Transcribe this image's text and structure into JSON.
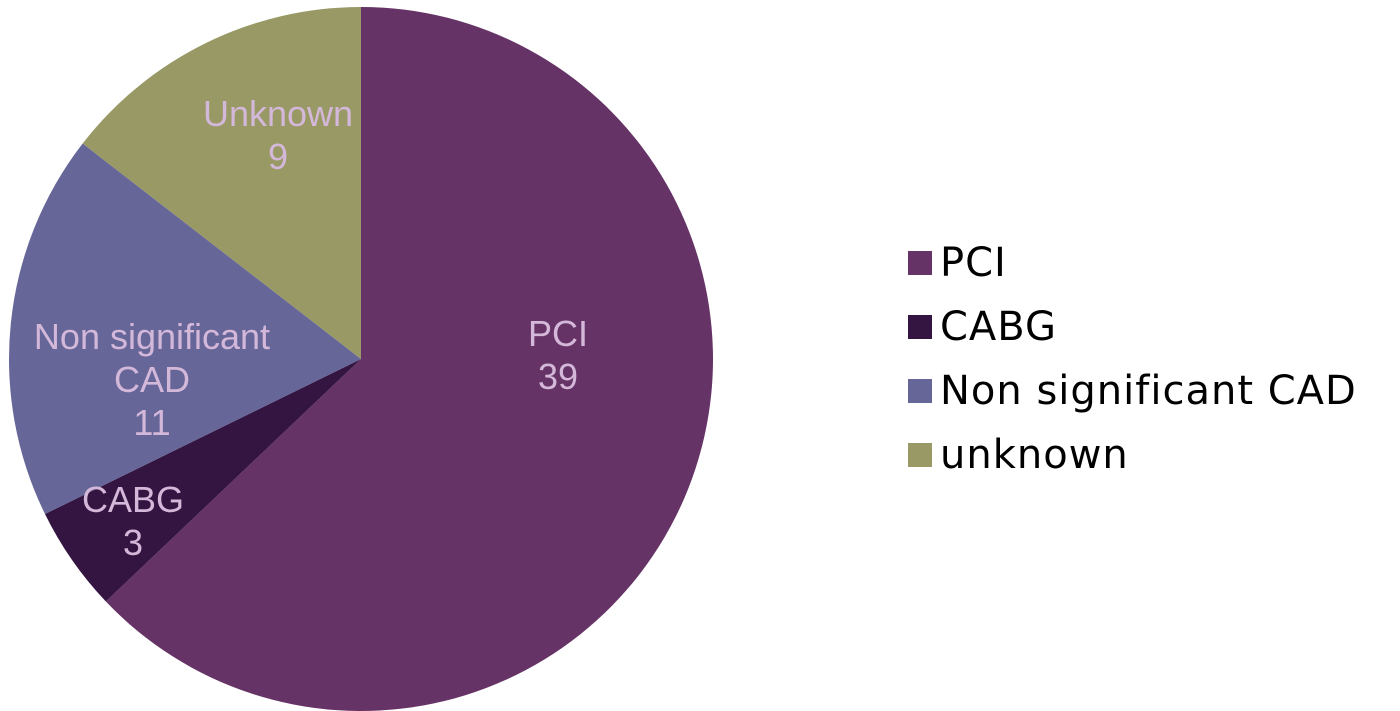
{
  "chart_data": {
    "type": "pie",
    "categories": [
      "PCI",
      "CABG",
      "Non significant CAD",
      "unknown"
    ],
    "label_names": [
      "PCI",
      "CABG",
      "Non significant CAD",
      "Unknown"
    ],
    "values": [
      39,
      3,
      11,
      9
    ],
    "colors": [
      "#663366",
      "#341541",
      "#666699",
      "#999966"
    ],
    "legend": "right"
  }
}
